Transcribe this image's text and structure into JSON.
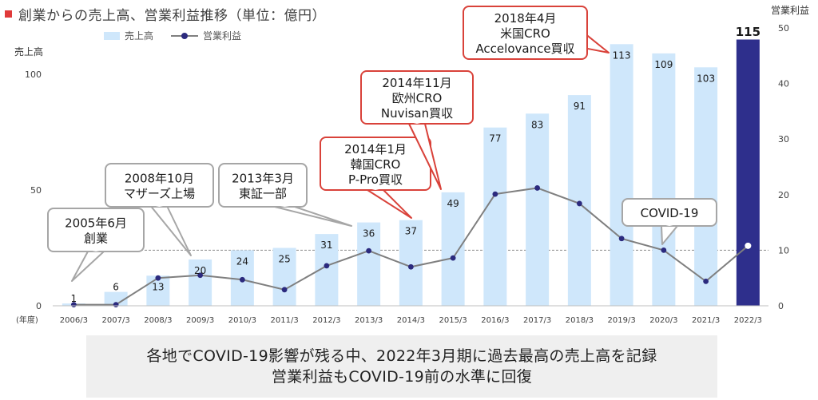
{
  "header": {
    "title": "創業からの売上高、営業利益推移（単位：億円）"
  },
  "footer": {
    "line1": "各地でCOVID-19影響が残る中、2022年3月期に過去最高の売上高を記録",
    "line2": "営業利益もCOVID-19前の水準に回復"
  },
  "chart_data": {
    "type": "bar",
    "title": "創業からの売上高、営業利益推移（単位：億円）",
    "categories": [
      "2006/3",
      "2007/3",
      "2008/3",
      "2009/3",
      "2010/3",
      "2011/3",
      "2012/3",
      "2013/3",
      "2014/3",
      "2015/3",
      "2016/3",
      "2017/3",
      "2018/3",
      "2019/3",
      "2020/3",
      "2021/3",
      "2022/3"
    ],
    "x_unit_label": "(年度)",
    "ylabel": "売上高",
    "y2label": "営業利益",
    "ylim": [
      0,
      115
    ],
    "y2lim": [
      0,
      50
    ],
    "yticks": [
      0,
      50,
      100
    ],
    "y2ticks": [
      0,
      10,
      20,
      30,
      40,
      50
    ],
    "grid": false,
    "reference_line_y2": 10,
    "legend": {
      "position": "top-left",
      "entries": [
        "売上高",
        "営業利益"
      ]
    },
    "series": [
      {
        "name": "売上高",
        "type": "bar",
        "axis": "left",
        "color": "#cfe7fb",
        "highlight_color": "#2e2f8c",
        "highlight_index": 16,
        "values": [
          1,
          6,
          13,
          20,
          24,
          25,
          31,
          36,
          37,
          49,
          77,
          83,
          91,
          113,
          109,
          103,
          115
        ],
        "labels": [
          "1",
          "6",
          "13",
          "20",
          "24",
          "25",
          "31",
          "36",
          "37",
          "49",
          "77",
          "83",
          "91",
          "113",
          "109",
          "103",
          "115"
        ]
      },
      {
        "name": "営業利益",
        "type": "line",
        "axis": "right",
        "color": "#7f7f7f",
        "marker_color": "#2b2a7e",
        "last_marker_color": "#ffffff",
        "values": [
          0.2,
          0.2,
          5.0,
          5.5,
          4.7,
          2.9,
          7.2,
          9.9,
          7.0,
          8.6,
          20.1,
          21.2,
          18.4,
          12.1,
          10.0,
          4.4,
          10.8
        ]
      }
    ],
    "annotations": [
      {
        "index": 0,
        "lines": [
          "2005年6月",
          "創業"
        ],
        "style": "gray"
      },
      {
        "index": 3,
        "lines": [
          "2008年10月",
          "マザーズ上場"
        ],
        "style": "gray"
      },
      {
        "index": 7,
        "lines": [
          "2013年3月",
          "東証一部"
        ],
        "style": "gray"
      },
      {
        "index": 8,
        "lines": [
          "2014年1月",
          "韓国CRO",
          "P-Pro買収"
        ],
        "style": "red"
      },
      {
        "index": 9,
        "lines": [
          "2014年11月",
          "欧州CRO",
          "Nuvisan買収"
        ],
        "style": "red"
      },
      {
        "index": 13,
        "lines": [
          "2018年4月",
          "米国CRO",
          "Accelovance買収"
        ],
        "style": "red"
      },
      {
        "index": 14,
        "lines": [
          "COVID-19"
        ],
        "style": "gray"
      }
    ]
  }
}
